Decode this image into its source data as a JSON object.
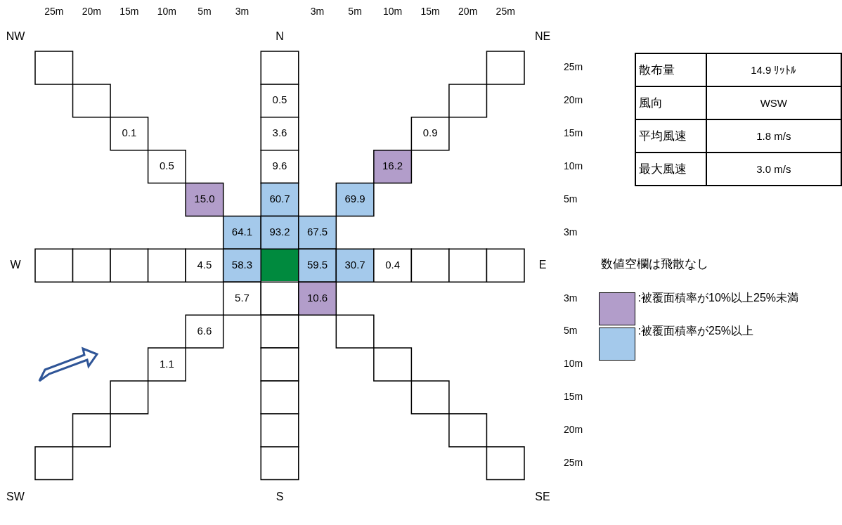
{
  "chart_data": {
    "type": "heatmap",
    "categories": [
      "25m",
      "20m",
      "15m",
      "10m",
      "5m",
      "3m",
      null,
      "3m",
      "5m",
      "10m",
      "15m",
      "20m",
      "25m"
    ],
    "y_categories": [
      "25m",
      "20m",
      "15m",
      "10m",
      "5m",
      "3m",
      null,
      "3m",
      "5m",
      "10m",
      "15m",
      "20m",
      "25m"
    ],
    "data_labels": true,
    "cells": [
      [
        null,
        null,
        null,
        null,
        null,
        null,
        null,
        null,
        null,
        null,
        null,
        null,
        null
      ],
      [
        null,
        null,
        null,
        null,
        null,
        null,
        0.5,
        null,
        null,
        null,
        null,
        null,
        null
      ],
      [
        null,
        null,
        0.1,
        null,
        null,
        null,
        3.6,
        null,
        null,
        null,
        0.9,
        null,
        null
      ],
      [
        null,
        null,
        null,
        0.5,
        null,
        null,
        9.6,
        null,
        null,
        16.2,
        null,
        null,
        null
      ],
      [
        null,
        null,
        null,
        null,
        15.0,
        null,
        60.7,
        null,
        69.9,
        null,
        null,
        null,
        null
      ],
      [
        null,
        null,
        null,
        null,
        null,
        64.1,
        93.2,
        67.5,
        null,
        null,
        null,
        null,
        null
      ],
      [
        null,
        null,
        null,
        null,
        4.5,
        58.3,
        null,
        59.5,
        30.7,
        0.4,
        null,
        null,
        null
      ],
      [
        null,
        null,
        null,
        null,
        null,
        5.7,
        null,
        10.6,
        null,
        null,
        null,
        null,
        null
      ],
      [
        null,
        null,
        null,
        null,
        6.6,
        null,
        null,
        null,
        null,
        null,
        null,
        null,
        null
      ],
      [
        null,
        null,
        null,
        1.1,
        null,
        null,
        null,
        null,
        null,
        null,
        null,
        null,
        null
      ],
      [
        null,
        null,
        null,
        null,
        null,
        null,
        null,
        null,
        null,
        null,
        null,
        null,
        null
      ],
      [
        null,
        null,
        null,
        null,
        null,
        null,
        null,
        null,
        null,
        null,
        null,
        null,
        null
      ],
      [
        null,
        null,
        null,
        null,
        null,
        null,
        null,
        null,
        null,
        null,
        null,
        null,
        null
      ]
    ],
    "cell_labels": [
      [
        null,
        null,
        null,
        null,
        null,
        null,
        null,
        null,
        null,
        null,
        null,
        null,
        null
      ],
      [
        null,
        null,
        null,
        null,
        null,
        null,
        "0.5",
        null,
        null,
        null,
        null,
        null,
        null
      ],
      [
        null,
        null,
        "0.1",
        null,
        null,
        null,
        "3.6",
        null,
        null,
        null,
        "0.9",
        null,
        null
      ],
      [
        null,
        null,
        null,
        "0.5",
        null,
        null,
        "9.6",
        null,
        null,
        "16.2",
        null,
        null,
        null
      ],
      [
        null,
        null,
        null,
        null,
        "15.0",
        null,
        "60.7",
        null,
        "69.9",
        null,
        null,
        null,
        null
      ],
      [
        null,
        null,
        null,
        null,
        null,
        "64.1",
        "93.2",
        "67.5",
        null,
        null,
        null,
        null,
        null
      ],
      [
        null,
        null,
        null,
        null,
        "4.5",
        "58.3",
        null,
        "59.5",
        "30.7",
        "0.4",
        null,
        null,
        null
      ],
      [
        null,
        null,
        null,
        null,
        null,
        "5.7",
        null,
        "10.6",
        null,
        null,
        null,
        null,
        null
      ],
      [
        null,
        null,
        null,
        null,
        "6.6",
        null,
        null,
        null,
        null,
        null,
        null,
        null,
        null
      ],
      [
        null,
        null,
        null,
        "1.1",
        null,
        null,
        null,
        null,
        null,
        null,
        null,
        null,
        null
      ],
      [
        null,
        null,
        null,
        null,
        null,
        null,
        null,
        null,
        null,
        null,
        null,
        null,
        null
      ],
      [
        null,
        null,
        null,
        null,
        null,
        null,
        null,
        null,
        null,
        null,
        null,
        null,
        null
      ],
      [
        null,
        null,
        null,
        null,
        null,
        null,
        null,
        null,
        null,
        null,
        null,
        null,
        null
      ]
    ],
    "colors": [
      [
        "#ffffff",
        null,
        null,
        null,
        null,
        null,
        "#ffffff",
        null,
        null,
        null,
        null,
        null,
        "#ffffff"
      ],
      [
        null,
        "#ffffff",
        null,
        null,
        null,
        null,
        "#ffffff",
        null,
        null,
        null,
        null,
        "#ffffff",
        null
      ],
      [
        null,
        null,
        "#ffffff",
        null,
        null,
        null,
        "#ffffff",
        null,
        null,
        null,
        "#ffffff",
        null,
        null
      ],
      [
        null,
        null,
        null,
        "#ffffff",
        null,
        null,
        "#ffffff",
        null,
        null,
        "#b29dca",
        null,
        null,
        null
      ],
      [
        null,
        null,
        null,
        null,
        "#b29dca",
        null,
        "#a4c9eb",
        null,
        "#a4c9eb",
        null,
        null,
        null,
        null
      ],
      [
        null,
        null,
        null,
        null,
        null,
        "#a4c9eb",
        "#a4c9eb",
        "#a4c9eb",
        null,
        null,
        null,
        null,
        null
      ],
      [
        "#ffffff",
        "#ffffff",
        "#ffffff",
        "#ffffff",
        "#ffffff",
        "#a4c9eb",
        null,
        "#a4c9eb",
        "#a4c9eb",
        "#ffffff",
        "#ffffff",
        "#ffffff",
        "#ffffff"
      ],
      [
        null,
        null,
        null,
        null,
        null,
        "#ffffff",
        "#ffffff",
        "#b29dca",
        null,
        null,
        null,
        null,
        null
      ],
      [
        null,
        null,
        null,
        null,
        "#ffffff",
        null,
        "#ffffff",
        null,
        "#ffffff",
        null,
        null,
        null,
        null
      ],
      [
        null,
        null,
        null,
        "#ffffff",
        null,
        null,
        "#ffffff",
        null,
        null,
        "#ffffff",
        null,
        null,
        null
      ],
      [
        null,
        null,
        "#ffffff",
        null,
        null,
        null,
        "#ffffff",
        null,
        null,
        null,
        "#ffffff",
        null,
        null
      ],
      [
        null,
        "#ffffff",
        null,
        null,
        null,
        null,
        "#ffffff",
        null,
        null,
        null,
        null,
        "#ffffff",
        null
      ],
      [
        "#ffffff",
        null,
        null,
        null,
        null,
        null,
        "#ffffff",
        null,
        null,
        null,
        null,
        null,
        "#ffffff"
      ]
    ],
    "annotations": [
      "NW",
      "N",
      "NE",
      "W",
      "E",
      "SW",
      "S",
      "SE",
      "数値空欄は飛散なし",
      ":被覆面積率が10%以上25%未満",
      ":被覆面積率が25%以上",
      "散布量",
      "14.9  ﾘｯﾄﾙ",
      "風向",
      "WSW",
      "平均風速",
      "1.8  m/s",
      "最大風速",
      "3.0  m/s"
    ]
  }
}
